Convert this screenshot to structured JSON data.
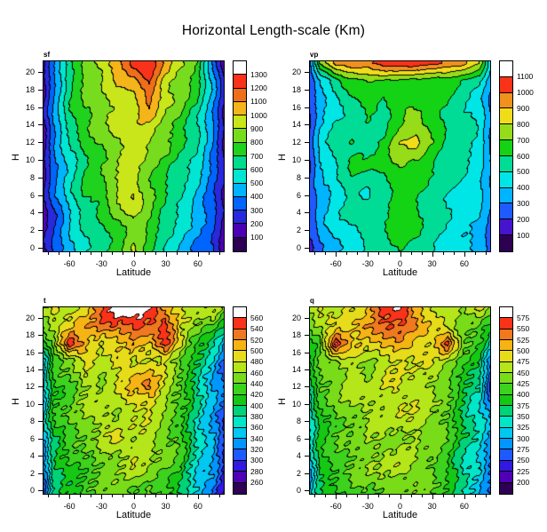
{
  "title": "Horizontal Length-scale (Km)",
  "axes": {
    "xlabel": "Latitude",
    "ylabel": "H",
    "x_ticks": [
      -60,
      -30,
      0,
      30,
      60
    ],
    "x_minor_step": 10,
    "x_range": [
      -85,
      85
    ],
    "y_ticks": [
      0,
      2,
      4,
      6,
      8,
      10,
      12,
      14,
      16,
      18,
      20
    ],
    "y_range": [
      -0.5,
      21.3
    ],
    "grid": false,
    "legend_position": "right-colorbar"
  },
  "chart_data": [
    {
      "type": "heatmap",
      "name": "sf",
      "title": "sf",
      "levels": [
        100,
        200,
        300,
        400,
        500,
        600,
        700,
        800,
        900,
        1000,
        1100,
        1200,
        1300
      ],
      "colors": [
        "#2d0054",
        "#4b00b4",
        "#2828dc",
        "#0064ff",
        "#00b4ff",
        "#00e6d2",
        "#00dc8c",
        "#1ed21e",
        "#78dc1e",
        "#c8e619",
        "#f5b419",
        "#f06e19",
        "#fa3219",
        "#ffffff"
      ],
      "x": [
        -85,
        -75,
        -60,
        -45,
        -30,
        -15,
        0,
        15,
        30,
        45,
        60,
        75,
        85
      ],
      "y": [
        21,
        19,
        17,
        15,
        12,
        9,
        6,
        3,
        0
      ],
      "values": [
        [
          150,
          350,
          650,
          800,
          950,
          1050,
          1240,
          1260,
          1050,
          900,
          800,
          400,
          150
        ],
        [
          150,
          400,
          700,
          850,
          900,
          1000,
          1050,
          1190,
          950,
          850,
          750,
          450,
          200
        ],
        [
          150,
          400,
          680,
          820,
          880,
          950,
          1000,
          1150,
          950,
          830,
          700,
          420,
          200
        ],
        [
          150,
          400,
          650,
          800,
          850,
          950,
          950,
          1050,
          900,
          800,
          650,
          400,
          200
        ],
        [
          150,
          400,
          600,
          750,
          800,
          900,
          950,
          900,
          800,
          700,
          600,
          400,
          200
        ],
        [
          150,
          350,
          550,
          700,
          800,
          900,
          950,
          850,
          750,
          650,
          550,
          350,
          200
        ],
        [
          150,
          350,
          550,
          700,
          750,
          900,
          1000,
          800,
          700,
          600,
          500,
          350,
          200
        ],
        [
          150,
          300,
          500,
          650,
          700,
          800,
          900,
          800,
          650,
          550,
          450,
          300,
          150
        ],
        [
          150,
          300,
          450,
          600,
          650,
          750,
          900,
          750,
          600,
          500,
          400,
          300,
          150
        ]
      ]
    },
    {
      "type": "heatmap",
      "name": "vp",
      "title": "vp",
      "levels": [
        100,
        200,
        300,
        400,
        500,
        600,
        700,
        800,
        900,
        1000,
        1100
      ],
      "colors": [
        "#2d0054",
        "#4614cd",
        "#1e5aff",
        "#00b4ff",
        "#00e6e6",
        "#00dc96",
        "#14d214",
        "#96dc19",
        "#f0dc19",
        "#f0911e",
        "#fa3219",
        "#ffffff"
      ],
      "x": [
        -85,
        -75,
        -60,
        -45,
        -30,
        -15,
        0,
        15,
        30,
        45,
        60,
        75,
        85
      ],
      "y": [
        21,
        19,
        17,
        15,
        12,
        9,
        6,
        3,
        0
      ],
      "values": [
        [
          200,
          700,
          950,
          1000,
          1000,
          1050,
          1080,
          1060,
          1050,
          1000,
          950,
          800,
          400
        ],
        [
          200,
          400,
          550,
          650,
          680,
          680,
          700,
          680,
          680,
          650,
          600,
          500,
          350
        ],
        [
          200,
          350,
          450,
          600,
          650,
          600,
          650,
          600,
          650,
          600,
          550,
          450,
          300
        ],
        [
          200,
          400,
          500,
          550,
          600,
          550,
          650,
          750,
          650,
          550,
          500,
          450,
          300
        ],
        [
          200,
          400,
          550,
          600,
          550,
          650,
          800,
          850,
          700,
          600,
          550,
          500,
          300
        ],
        [
          200,
          400,
          500,
          600,
          600,
          600,
          700,
          650,
          600,
          550,
          500,
          450,
          300
        ],
        [
          200,
          350,
          450,
          550,
          500,
          550,
          650,
          600,
          550,
          500,
          450,
          400,
          300
        ],
        [
          200,
          350,
          450,
          500,
          550,
          600,
          700,
          650,
          550,
          500,
          450,
          400,
          300
        ],
        [
          200,
          300,
          400,
          450,
          500,
          550,
          600,
          550,
          500,
          450,
          400,
          350,
          250
        ]
      ]
    },
    {
      "type": "heatmap",
      "name": "t",
      "title": "t",
      "levels": [
        260,
        280,
        300,
        320,
        340,
        360,
        380,
        400,
        420,
        440,
        460,
        480,
        500,
        520,
        540,
        560
      ],
      "colors": [
        "#2d0054",
        "#5000b4",
        "#3219e1",
        "#1e5aff",
        "#0096ff",
        "#00c8f0",
        "#00e6c8",
        "#00d278",
        "#14c814",
        "#3cd21e",
        "#78dc19",
        "#b4e619",
        "#e6dc19",
        "#f5b414",
        "#f0781e",
        "#fa3219",
        "#ffffff"
      ],
      "x": [
        -85,
        -75,
        -60,
        -45,
        -30,
        -15,
        0,
        15,
        30,
        45,
        60,
        75,
        85
      ],
      "y": [
        21,
        19,
        17,
        15,
        12,
        9,
        6,
        3,
        0
      ],
      "values": [
        [
          470,
          500,
          470,
          490,
          530,
          570,
          580,
          560,
          520,
          480,
          470,
          480,
          450
        ],
        [
          450,
          470,
          490,
          520,
          540,
          540,
          550,
          530,
          540,
          470,
          450,
          430,
          400
        ],
        [
          400,
          450,
          560,
          520,
          480,
          500,
          510,
          500,
          560,
          490,
          420,
          380,
          340
        ],
        [
          350,
          420,
          440,
          480,
          460,
          490,
          480,
          490,
          480,
          440,
          400,
          360,
          320
        ],
        [
          350,
          420,
          440,
          470,
          460,
          480,
          500,
          520,
          470,
          440,
          380,
          340,
          320
        ],
        [
          340,
          420,
          440,
          460,
          480,
          460,
          490,
          480,
          460,
          420,
          380,
          340,
          300
        ],
        [
          340,
          400,
          430,
          440,
          460,
          480,
          460,
          470,
          450,
          430,
          380,
          340,
          300
        ],
        [
          320,
          400,
          420,
          440,
          450,
          460,
          480,
          460,
          440,
          420,
          360,
          340,
          300
        ],
        [
          300,
          380,
          400,
          420,
          440,
          460,
          440,
          450,
          430,
          400,
          350,
          320,
          280
        ]
      ]
    },
    {
      "type": "heatmap",
      "name": "q",
      "title": "q",
      "levels": [
        200,
        225,
        250,
        275,
        300,
        325,
        350,
        375,
        400,
        425,
        450,
        475,
        500,
        525,
        550,
        575
      ],
      "colors": [
        "#2d0054",
        "#5000b4",
        "#3219e1",
        "#1e5aff",
        "#0096ff",
        "#00c8f0",
        "#00e6c8",
        "#00d278",
        "#14c814",
        "#3cd21e",
        "#78dc19",
        "#b4e619",
        "#e6dc19",
        "#f5b414",
        "#f0781e",
        "#fa3219",
        "#ffffff"
      ],
      "x": [
        -85,
        -75,
        -60,
        -45,
        -30,
        -15,
        0,
        15,
        30,
        45,
        60,
        75,
        85
      ],
      "y": [
        21,
        19,
        17,
        15,
        12,
        9,
        6,
        3,
        0
      ],
      "values": [
        [
          450,
          475,
          450,
          475,
          500,
          575,
          590,
          525,
          475,
          450,
          450,
          475,
          450
        ],
        [
          425,
          450,
          475,
          500,
          525,
          550,
          540,
          520,
          500,
          475,
          450,
          425,
          400
        ],
        [
          400,
          425,
          585,
          500,
          475,
          500,
          510,
          500,
          475,
          565,
          425,
          400,
          350
        ],
        [
          375,
          425,
          450,
          475,
          450,
          475,
          480,
          475,
          470,
          450,
          400,
          375,
          280
        ],
        [
          350,
          420,
          440,
          460,
          450,
          470,
          480,
          470,
          460,
          440,
          380,
          350,
          240
        ],
        [
          325,
          400,
          430,
          440,
          460,
          450,
          470,
          460,
          450,
          420,
          370,
          330,
          300
        ],
        [
          325,
          390,
          420,
          430,
          450,
          460,
          450,
          460,
          440,
          420,
          370,
          330,
          290
        ],
        [
          300,
          380,
          410,
          430,
          440,
          450,
          460,
          450,
          430,
          410,
          350,
          330,
          280
        ],
        [
          300,
          370,
          400,
          420,
          430,
          440,
          430,
          440,
          420,
          390,
          340,
          310,
          270
        ]
      ]
    }
  ]
}
